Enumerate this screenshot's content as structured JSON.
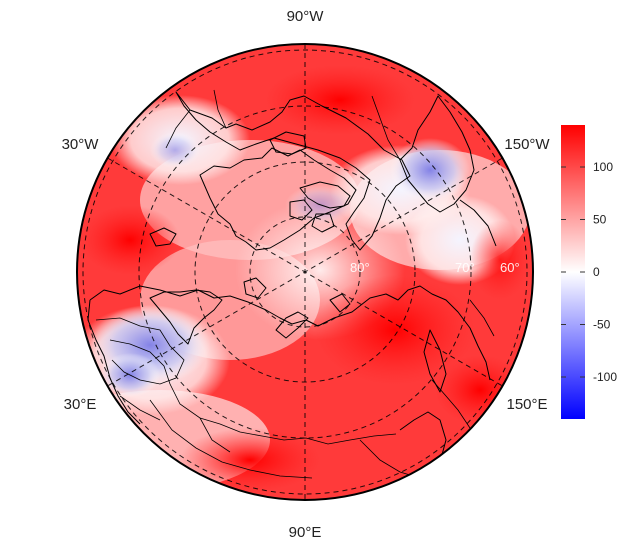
{
  "map": {
    "projection": "north-polar-stereographic",
    "longitude_labels": {
      "top": "90°W",
      "top_left": "30°W",
      "top_right": "150°W",
      "bottom_left": "30°E",
      "bottom_right": "150°E",
      "bottom": "90°E"
    },
    "latitude_labels": [
      "80°",
      "70°",
      "60°"
    ],
    "graticule_style": "dashed",
    "border_colors": {
      "coastline": "#000000",
      "frame": "#000000"
    }
  },
  "colorbar": {
    "ticks": [
      "100",
      "50",
      "0",
      "-50",
      "-100"
    ],
    "tick_values": [
      100,
      50,
      0,
      -50,
      -100
    ],
    "range": [
      -140,
      140
    ],
    "colors": {
      "low": "#0000ff",
      "mid": "#ffffff",
      "high": "#ff0000"
    }
  }
}
